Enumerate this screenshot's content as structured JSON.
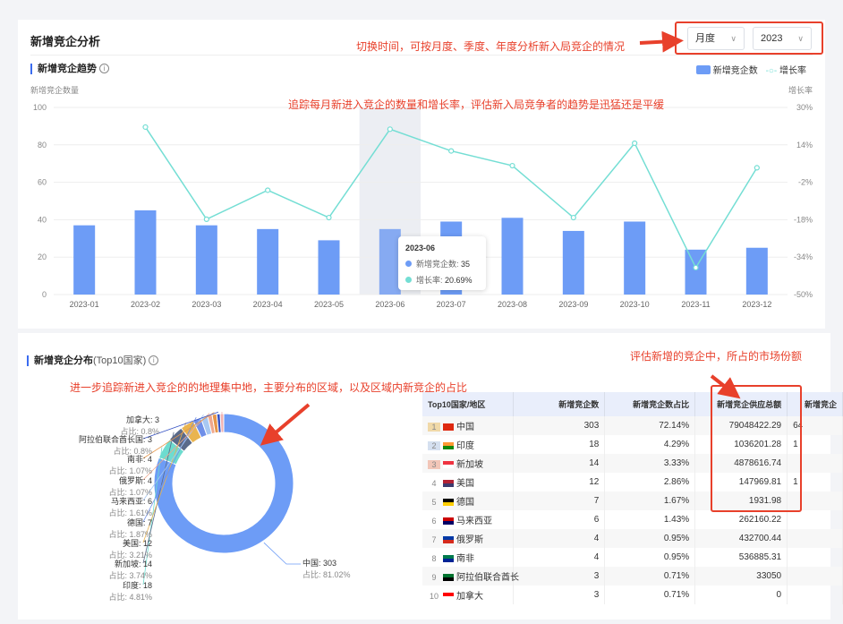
{
  "header": {
    "title": "新增竞企分析",
    "period_select": "月度",
    "year_select": "2023"
  },
  "annotations": {
    "time_switch": "切换时间，可按月度、季度、年度分析新入局竞企的情况",
    "trend": "追踪每月新进入竞企的数量和增长率，评估新入局竞争者的趋势是迅猛还是平缓",
    "geo": "进一步追踪新进入竞企的的地理集中地，主要分布的区域，以及区域内新竞企的占比",
    "market": "评估新增的竞企中，所占的市场份额"
  },
  "trend": {
    "title": "新增竞企趋势",
    "info_icon": "info-circle-icon"
  },
  "tooltip": {
    "title": "2023-06",
    "count_label": "新增竞企数:",
    "count_value": "35",
    "rate_label": "增长率:",
    "rate_value": "20.69%"
  },
  "chart_data": [
    {
      "type": "bar+line",
      "categories": [
        "2023-01",
        "2023-02",
        "2023-03",
        "2023-04",
        "2023-05",
        "2023-06",
        "2023-07",
        "2023-08",
        "2023-09",
        "2023-10",
        "2023-11",
        "2023-12"
      ],
      "series": [
        {
          "name": "新增竞企数",
          "type": "bar",
          "axis": "left",
          "color": "#6d9cf6",
          "values": [
            37,
            45,
            37,
            35,
            29,
            35,
            39,
            41,
            34,
            39,
            24,
            25
          ]
        },
        {
          "name": "增长率",
          "type": "line",
          "axis": "right",
          "color": "#74ded4",
          "values": [
            null,
            21.6,
            -17.8,
            -5.4,
            -17.1,
            20.69,
            11.4,
            5.1,
            -17.1,
            14.7,
            -38.5,
            4.2
          ]
        }
      ],
      "ylabel": "新增竞企数量",
      "y2label": "增长率",
      "ylim": [
        0,
        100
      ],
      "yticks": [
        "0",
        "20",
        "40",
        "60",
        "80",
        "100"
      ],
      "y2lim": [
        -50,
        30
      ],
      "y2ticks": [
        "-50%",
        "-34%",
        "-18%",
        "-2%",
        "14%",
        "30%"
      ],
      "highlighted": "2023-06",
      "legend": "top-right",
      "grid": true
    },
    {
      "type": "pie",
      "donut": true,
      "categories": [
        "中国",
        "印度",
        "新加坡",
        "美国",
        "德国",
        "马来西亚",
        "俄罗斯",
        "南非",
        "阿拉伯联合酋长国",
        "加拿大"
      ],
      "values": [
        303,
        18,
        14,
        12,
        7,
        6,
        4,
        4,
        3,
        3
      ],
      "percent_labels": [
        "81.02%",
        "4.81%",
        "3.74%",
        "3.21%",
        "1.87%",
        "1.61%",
        "1.07%",
        "1.07%",
        "0.8%",
        "0.8%"
      ],
      "colors": [
        "#6d9cf6",
        "#6ddccf",
        "#5a6a8a",
        "#e9b44f",
        "#6f8fe8",
        "#a8c8f2",
        "#f0a88c",
        "#e6964a",
        "#3552c4",
        "#f1b1b1"
      ],
      "label_prefix": "占比: "
    }
  ],
  "distribution": {
    "title": "新增竞企分布",
    "title_suffix": "(Top10国家)"
  },
  "table": {
    "headers": [
      "Top10国家/地区",
      "新增竞企数",
      "新增竞企数占比",
      "新增竞企供应总额",
      "新增竞企"
    ],
    "rows": [
      {
        "rank": "1",
        "name": "中国",
        "count": "303",
        "ratio": "72.14%",
        "supply": "79048422.29",
        "extra": "64",
        "flag": [
          "#de2910",
          "#de2910"
        ]
      },
      {
        "rank": "2",
        "name": "印度",
        "count": "18",
        "ratio": "4.29%",
        "supply": "1036201.28",
        "extra": "1",
        "flag": [
          "#ff9933",
          "#138808"
        ]
      },
      {
        "rank": "3",
        "name": "新加坡",
        "count": "14",
        "ratio": "3.33%",
        "supply": "4878616.74",
        "extra": "",
        "flag": [
          "#ef3340",
          "#ffffff"
        ]
      },
      {
        "rank": "4",
        "name": "美国",
        "count": "12",
        "ratio": "2.86%",
        "supply": "147969.81",
        "extra": "1",
        "flag": [
          "#b22234",
          "#3c3b6e"
        ]
      },
      {
        "rank": "5",
        "name": "德国",
        "count": "7",
        "ratio": "1.67%",
        "supply": "1931.98",
        "extra": "",
        "flag": [
          "#000000",
          "#ffce00"
        ]
      },
      {
        "rank": "6",
        "name": "马来西亚",
        "count": "6",
        "ratio": "1.43%",
        "supply": "262160.22",
        "extra": "",
        "flag": [
          "#cc0001",
          "#010066"
        ]
      },
      {
        "rank": "7",
        "name": "俄罗斯",
        "count": "4",
        "ratio": "0.95%",
        "supply": "432700.44",
        "extra": "",
        "flag": [
          "#0039a6",
          "#d52b1e"
        ]
      },
      {
        "rank": "8",
        "name": "南非",
        "count": "4",
        "ratio": "0.95%",
        "supply": "536885.31",
        "extra": "",
        "flag": [
          "#007a4d",
          "#002395"
        ]
      },
      {
        "rank": "9",
        "name": "阿拉伯联合酋长",
        "count": "3",
        "ratio": "0.71%",
        "supply": "33050",
        "extra": "",
        "flag": [
          "#00732f",
          "#000000"
        ]
      },
      {
        "rank": "10",
        "name": "加拿大",
        "count": "3",
        "ratio": "0.71%",
        "supply": "0",
        "extra": "",
        "flag": [
          "#ff0000",
          "#ffffff"
        ]
      }
    ]
  }
}
